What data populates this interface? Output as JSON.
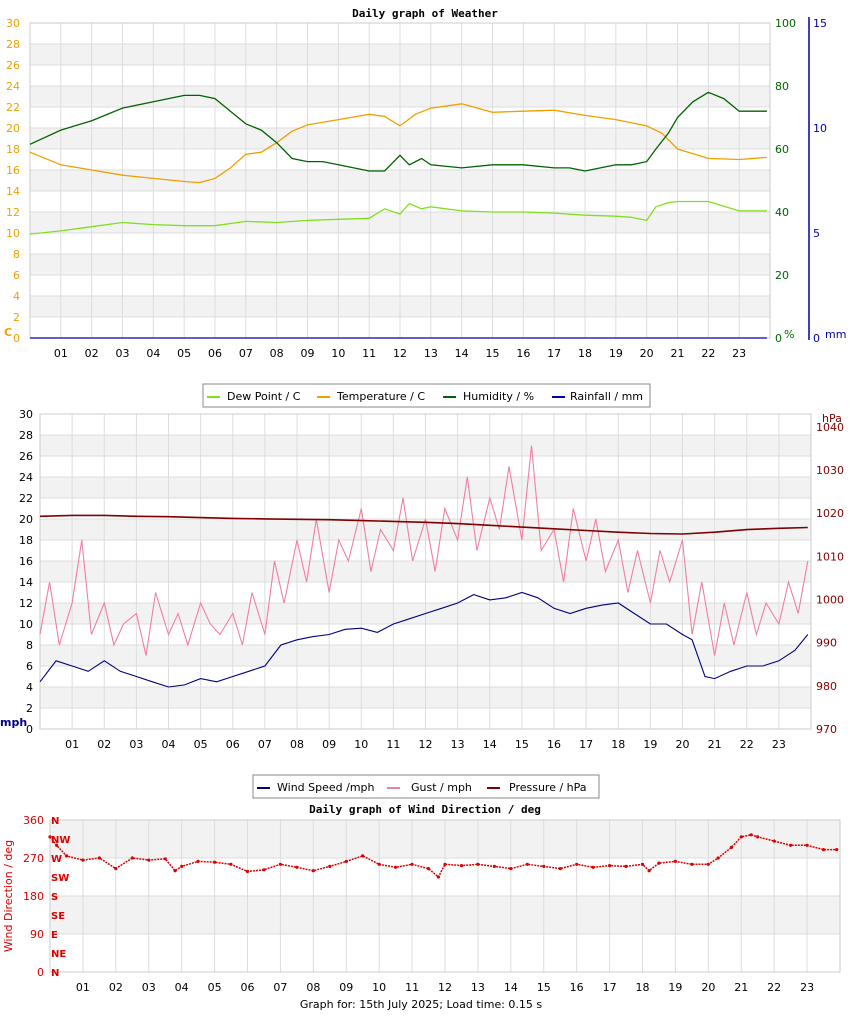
{
  "footer": "Graph for: 15th July 2025; Load time: 0.15 s",
  "hours": [
    "01",
    "02",
    "03",
    "04",
    "05",
    "06",
    "07",
    "08",
    "09",
    "10",
    "11",
    "12",
    "13",
    "14",
    "15",
    "16",
    "17",
    "18",
    "19",
    "20",
    "21",
    "22",
    "23"
  ],
  "chart_data": [
    {
      "type": "line",
      "title": "Daily graph of Weather",
      "x_unit": "hour",
      "xlim": [
        0,
        24
      ],
      "axes": {
        "left": {
          "label": "C",
          "ticks": [
            "0",
            "2",
            "4",
            "6",
            "8",
            "10",
            "12",
            "14",
            "16",
            "18",
            "20",
            "22",
            "24",
            "26",
            "28",
            "30"
          ],
          "ylim": [
            0,
            30
          ],
          "color": "#f0a000"
        },
        "right1": {
          "label": "%",
          "ticks": [
            "0",
            "20",
            "40",
            "60",
            "80",
            "100"
          ],
          "ylim": [
            0,
            100
          ],
          "color": "#006400"
        },
        "right2": {
          "label": "mm",
          "ticks": [
            "0",
            "5",
            "10",
            "15"
          ],
          "ylim": [
            0,
            15
          ],
          "color": "#0000aa"
        }
      },
      "grid": true,
      "legend_position": "bottom",
      "series": [
        {
          "name": "Dew Point / C",
          "axis": "left",
          "color": "#80e020",
          "x": [
            0,
            1,
            2,
            3,
            4,
            5,
            6,
            7,
            8,
            9,
            10,
            11,
            11.5,
            12,
            12.3,
            12.7,
            13,
            14,
            15,
            16,
            17,
            18,
            19,
            19.5,
            20,
            20.3,
            20.7,
            21,
            22,
            23,
            23.9
          ],
          "y": [
            9.9,
            10.2,
            10.6,
            11.0,
            10.8,
            10.7,
            10.7,
            11.1,
            11.0,
            11.2,
            11.3,
            11.4,
            12.3,
            11.8,
            12.8,
            12.3,
            12.5,
            12.1,
            12.0,
            12.0,
            11.9,
            11.7,
            11.6,
            11.5,
            11.2,
            12.5,
            12.9,
            13.0,
            13.0,
            12.1,
            12.1
          ]
        },
        {
          "name": "Temperature / C",
          "axis": "left",
          "color": "#f0a000",
          "x": [
            0,
            1,
            2,
            3,
            4,
            5,
            5.5,
            6,
            6.5,
            7,
            7.5,
            8,
            8.5,
            9,
            10,
            11,
            11.5,
            12,
            12.5,
            13,
            14,
            15,
            16,
            17,
            18,
            19,
            19.5,
            20,
            20.5,
            21,
            22,
            23,
            23.9
          ],
          "y": [
            17.7,
            16.5,
            16.0,
            15.5,
            15.2,
            14.9,
            14.8,
            15.2,
            16.2,
            17.5,
            17.7,
            18.6,
            19.7,
            20.3,
            20.8,
            21.3,
            21.1,
            20.2,
            21.3,
            21.9,
            22.3,
            21.5,
            21.6,
            21.7,
            21.2,
            20.8,
            20.5,
            20.2,
            19.5,
            18.0,
            17.1,
            17.0,
            17.2
          ]
        },
        {
          "name": "Humidity / %",
          "axis": "right1",
          "color": "#006400",
          "x": [
            0,
            1,
            2,
            3,
            4,
            5,
            5.5,
            6,
            6.5,
            7,
            7.5,
            8,
            8.5,
            9,
            9.5,
            10,
            10.5,
            11,
            11.5,
            12,
            12.3,
            12.7,
            13,
            14,
            15,
            16,
            17,
            17.5,
            18,
            18.5,
            19,
            19.5,
            20,
            20.3,
            20.7,
            21,
            21.5,
            22,
            22.5,
            23,
            23.9
          ],
          "y": [
            61.5,
            66,
            69,
            73,
            75,
            77,
            77,
            76,
            72,
            68,
            66,
            62,
            57,
            56,
            56,
            55,
            54,
            53,
            53,
            58,
            55,
            57,
            55,
            54,
            55,
            55,
            54,
            54,
            53,
            54,
            55,
            55,
            56,
            60,
            65,
            70,
            75,
            78,
            76,
            72,
            72
          ]
        },
        {
          "name": "Rainfall / mm",
          "axis": "right2",
          "color": "#0000aa",
          "x": [
            0,
            23.9
          ],
          "y": [
            0,
            0
          ]
        }
      ]
    },
    {
      "type": "line",
      "title": "",
      "x_unit": "hour",
      "xlim": [
        0,
        24
      ],
      "axes": {
        "left": {
          "label": "mph",
          "ticks": [
            "0",
            "2",
            "4",
            "6",
            "8",
            "10",
            "12",
            "14",
            "16",
            "18",
            "20",
            "22",
            "24",
            "26",
            "28",
            "30"
          ],
          "ylim": [
            0,
            30
          ],
          "color": "#000080"
        },
        "right": {
          "label": "hPa",
          "ticks": [
            "970",
            "980",
            "990",
            "1000",
            "1010",
            "1020",
            "1030",
            "1040"
          ],
          "ylim": [
            970,
            1043
          ],
          "color": "#800000"
        }
      },
      "grid": true,
      "legend_position": "bottom",
      "series": [
        {
          "name": "Wind Speed /mph",
          "axis": "left",
          "color": "#000080",
          "x": [
            0,
            0.5,
            1,
            1.5,
            2,
            2.5,
            3,
            3.5,
            4,
            4.5,
            5,
            5.5,
            6,
            6.5,
            7,
            7.5,
            8,
            8.5,
            9,
            9.5,
            10,
            10.5,
            11,
            11.5,
            12,
            12.5,
            13,
            13.5,
            14,
            14.5,
            15,
            15.5,
            16,
            16.5,
            17,
            17.5,
            18,
            18.5,
            19,
            19.5,
            20,
            20.3,
            20.7,
            21,
            21.5,
            22,
            22.5,
            23,
            23.5,
            23.9
          ],
          "y": [
            4.5,
            6.5,
            6,
            5.5,
            6.5,
            5.5,
            5,
            4.5,
            4,
            4.2,
            4.8,
            4.5,
            5,
            5.5,
            6,
            8,
            8.5,
            8.8,
            9,
            9.5,
            9.6,
            9.2,
            10,
            10.5,
            11,
            11.5,
            12,
            12.8,
            12.3,
            12.5,
            13,
            12.5,
            11.5,
            11,
            11.5,
            11.8,
            12,
            11,
            10,
            10,
            9,
            8.5,
            5,
            4.8,
            5.5,
            6,
            6,
            6.5,
            7.5,
            9
          ]
        },
        {
          "name": "Gust / mph",
          "axis": "left",
          "color": "#f080a0",
          "x": [
            0,
            0.3,
            0.6,
            1,
            1.3,
            1.6,
            2,
            2.3,
            2.6,
            3,
            3.3,
            3.6,
            4,
            4.3,
            4.6,
            5,
            5.3,
            5.6,
            6,
            6.3,
            6.6,
            7,
            7.3,
            7.6,
            8,
            8.3,
            8.6,
            9,
            9.3,
            9.6,
            10,
            10.3,
            10.6,
            11,
            11.3,
            11.6,
            12,
            12.3,
            12.6,
            13,
            13.3,
            13.6,
            14,
            14.3,
            14.6,
            15,
            15.3,
            15.6,
            16,
            16.3,
            16.6,
            17,
            17.3,
            17.6,
            18,
            18.3,
            18.6,
            19,
            19.3,
            19.6,
            20,
            20.3,
            20.6,
            21,
            21.3,
            21.6,
            22,
            22.3,
            22.6,
            23,
            23.3,
            23.6,
            23.9
          ],
          "y": [
            9,
            14,
            8,
            12,
            18,
            9,
            12,
            8,
            10,
            11,
            7,
            13,
            9,
            11,
            8,
            12,
            10,
            9,
            11,
            8,
            13,
            9,
            16,
            12,
            18,
            14,
            20,
            13,
            18,
            16,
            21,
            15,
            19,
            17,
            22,
            16,
            20,
            15,
            21,
            18,
            24,
            17,
            22,
            19,
            25,
            18,
            27,
            17,
            19,
            14,
            21,
            16,
            20,
            15,
            18,
            13,
            17,
            12,
            17,
            14,
            18,
            9,
            14,
            7,
            12,
            8,
            13,
            9,
            12,
            10,
            14,
            11,
            16
          ]
        },
        {
          "name": "Pressure / hPa",
          "axis": "right",
          "color": "#800000",
          "x": [
            0,
            1,
            2,
            3,
            4,
            5,
            6,
            7,
            8,
            9,
            10,
            11,
            12,
            13,
            14,
            15,
            16,
            17,
            18,
            19,
            20,
            21,
            22,
            23,
            23.9
          ],
          "y": [
            1019.3,
            1019.5,
            1019.5,
            1019.3,
            1019.2,
            1019.0,
            1018.8,
            1018.7,
            1018.6,
            1018.5,
            1018.3,
            1018.1,
            1017.9,
            1017.6,
            1017.2,
            1016.8,
            1016.4,
            1016.0,
            1015.6,
            1015.3,
            1015.2,
            1015.6,
            1016.2,
            1016.5,
            1016.7
          ]
        }
      ]
    },
    {
      "type": "scatter",
      "title": "Daily graph of Wind Direction / deg",
      "x_unit": "hour",
      "xlim": [
        0,
        24
      ],
      "ylabel": "Wind Direction / deg",
      "yticks": [
        "0",
        "90",
        "180",
        "270",
        "360"
      ],
      "ylim": [
        0,
        360
      ],
      "compass": [
        "N",
        "NE",
        "E",
        "SE",
        "S",
        "SW",
        "W",
        "NW",
        "N"
      ],
      "grid": true,
      "series": [
        {
          "name": "",
          "color": "#dd0000",
          "x": [
            0,
            0.2,
            0.5,
            1,
            1.5,
            2,
            2.5,
            3,
            3.5,
            3.8,
            4,
            4.5,
            5,
            5.5,
            6,
            6.5,
            7,
            7.5,
            8,
            8.5,
            9,
            9.5,
            10,
            10.5,
            11,
            11.5,
            11.8,
            12,
            12.5,
            13,
            13.5,
            14,
            14.5,
            15,
            15.5,
            16,
            16.5,
            17,
            17.5,
            18,
            18.2,
            18.5,
            19,
            19.5,
            20,
            20.3,
            20.7,
            21,
            21.3,
            21.5,
            22,
            22.5,
            23,
            23.5,
            23.9
          ],
          "y": [
            320,
            300,
            275,
            265,
            270,
            245,
            270,
            265,
            268,
            240,
            250,
            262,
            260,
            255,
            238,
            242,
            255,
            248,
            240,
            250,
            262,
            275,
            255,
            248,
            255,
            245,
            225,
            255,
            252,
            255,
            250,
            245,
            255,
            250,
            245,
            255,
            248,
            252,
            250,
            255,
            240,
            258,
            262,
            255,
            255,
            270,
            295,
            320,
            325,
            320,
            310,
            300,
            300,
            290,
            290
          ]
        }
      ]
    }
  ]
}
